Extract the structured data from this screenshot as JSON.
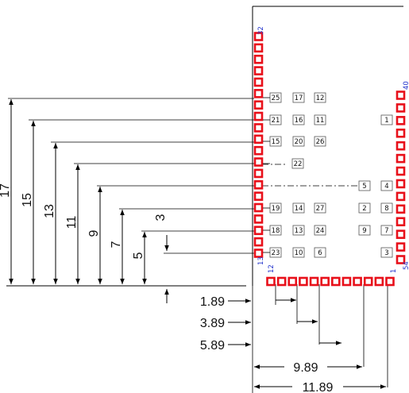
{
  "vertical_dimensions": [
    "17",
    "15",
    "13",
    "11",
    "9",
    "7",
    "5",
    "3"
  ],
  "horizontal_dimensions": [
    "1.89",
    "3.89",
    "5.89",
    "9.89",
    "11.89"
  ],
  "pin_numbers": {
    "left_top": "32",
    "left_bottom": "13",
    "bottom_left": "12",
    "bottom_right": "1",
    "right_top": "40",
    "right_bottom": "54"
  },
  "pad_labels": [
    "25",
    "17",
    "12",
    "21",
    "16",
    "11",
    "1",
    "15",
    "20",
    "26",
    "22",
    "5",
    "4",
    "19",
    "14",
    "27",
    "2",
    "8",
    "18",
    "13",
    "24",
    "9",
    "7",
    "23",
    "10",
    "6",
    "3"
  ],
  "colors": {
    "pad": "#e8101a",
    "line": "#000000",
    "pin_number": "#2233cc"
  }
}
